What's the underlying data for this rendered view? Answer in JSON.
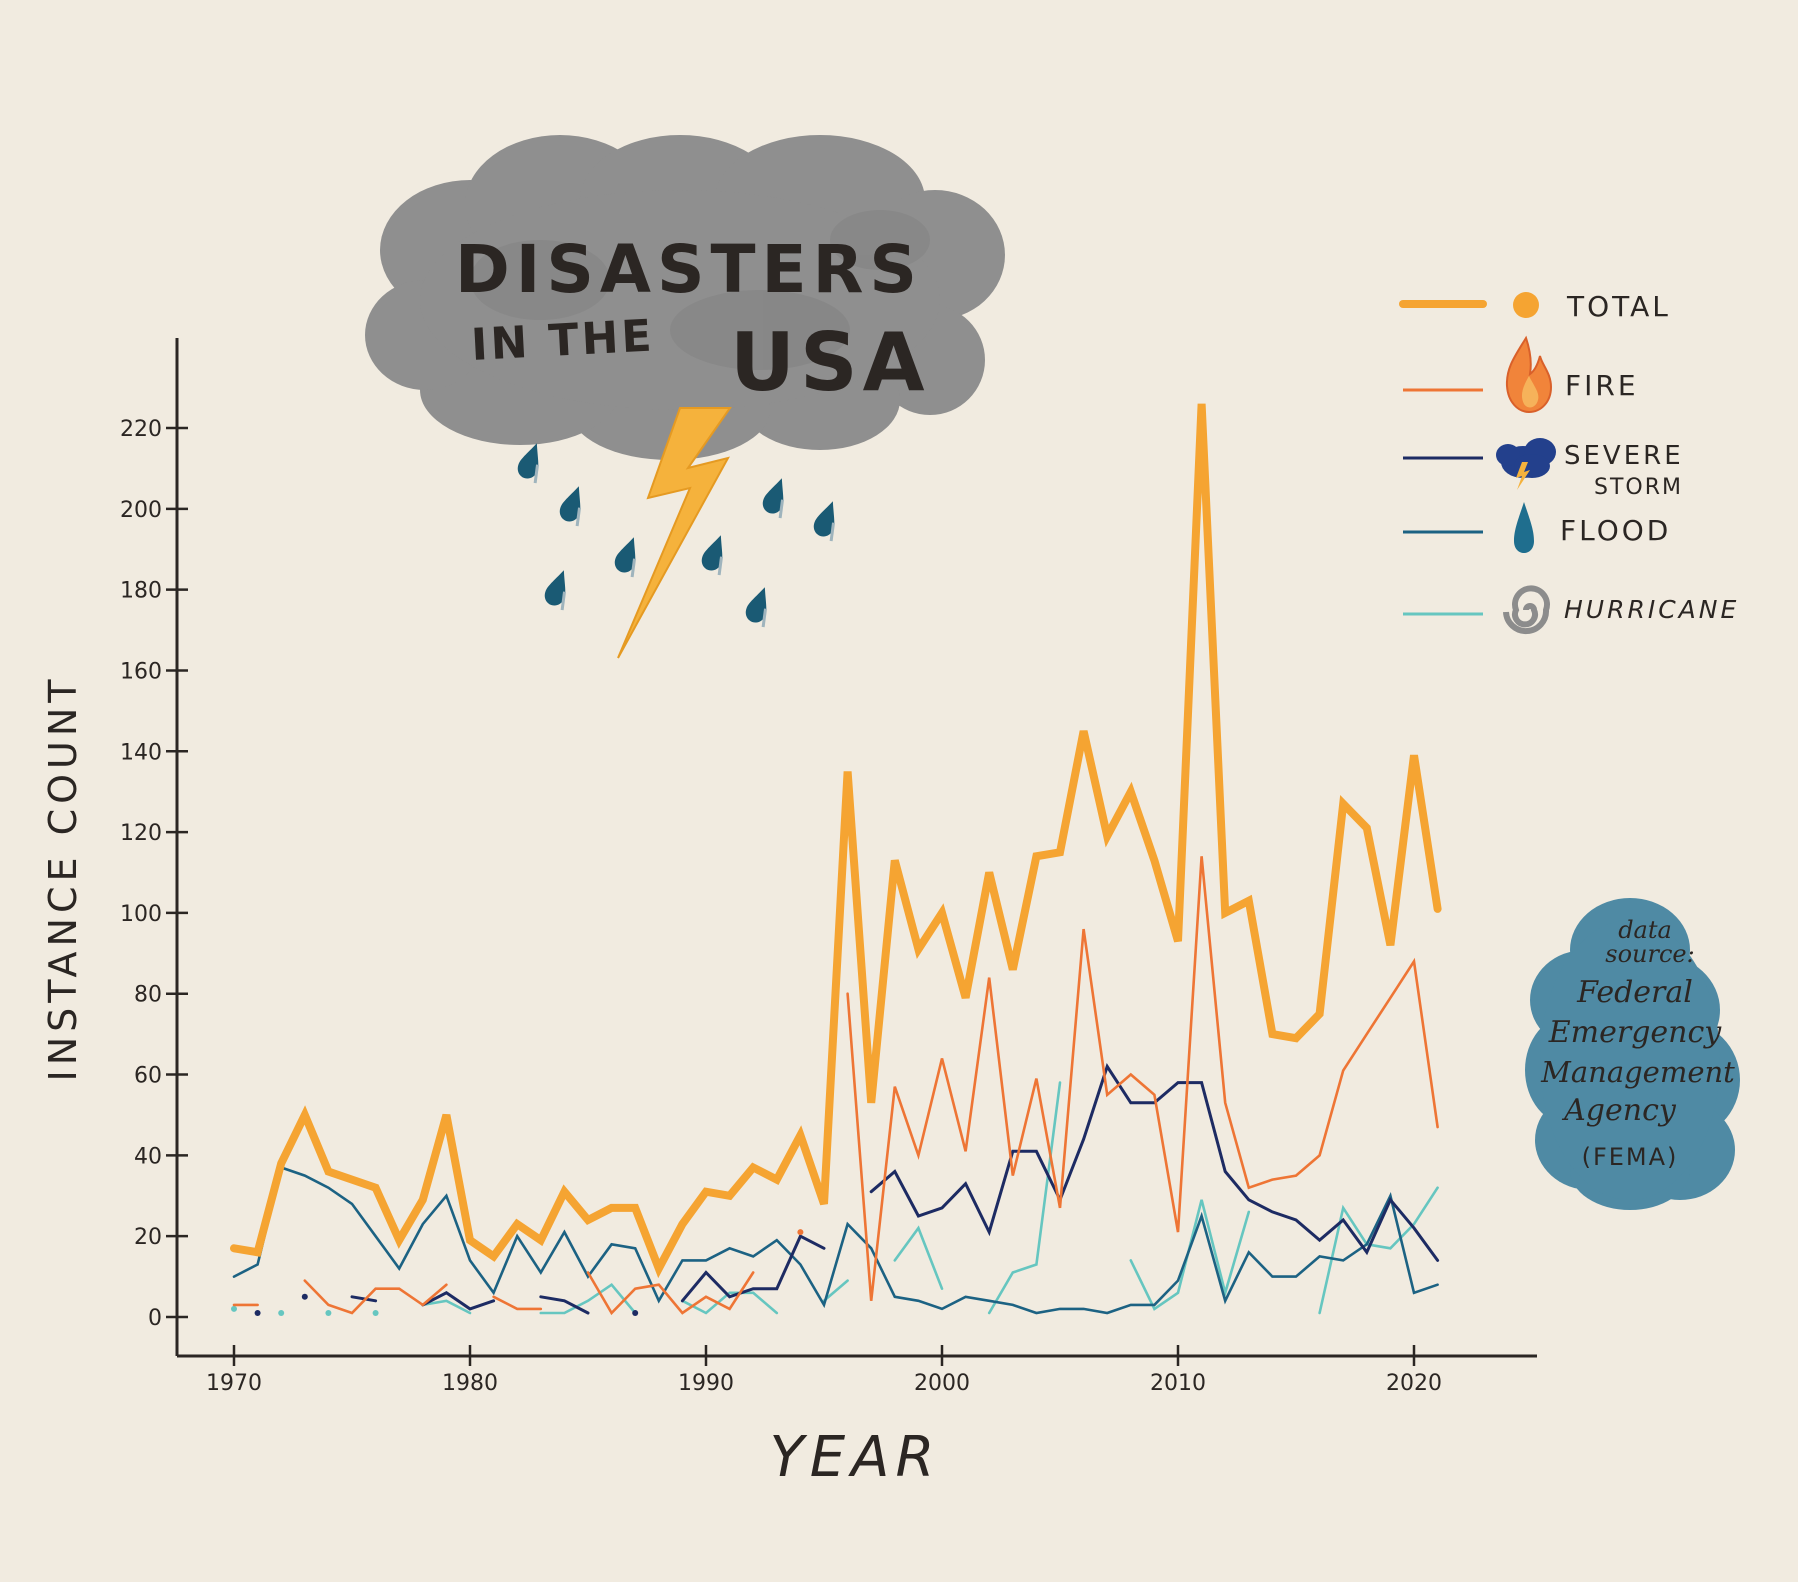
{
  "chart_data": {
    "type": "line",
    "title_line1": "DISASTERS",
    "title_line2_prefix": "IN THE",
    "title_line2_main": "USA",
    "xlabel": "YEAR",
    "ylabel": "INSTANCE COUNT",
    "xlim": [
      1968,
      2025
    ],
    "ylim": [
      -10,
      240
    ],
    "xticks": [
      1970,
      1980,
      1990,
      2000,
      2010,
      2020
    ],
    "yticks": [
      0,
      20,
      40,
      60,
      80,
      100,
      120,
      140,
      160,
      180,
      200,
      220
    ],
    "legend_position": "top-right",
    "source_note": [
      "data",
      "source:",
      "Federal",
      "Emergency",
      "Management",
      "Agency",
      "(FEMA)"
    ],
    "series": [
      {
        "name": "TOTAL",
        "color": "#f5a432",
        "icon": "dot-icon",
        "points": [
          [
            1970,
            17
          ],
          [
            1971,
            16
          ],
          [
            1972,
            38
          ],
          [
            1973,
            50
          ],
          [
            1974,
            36
          ],
          [
            1975,
            34
          ],
          [
            1976,
            32
          ],
          [
            1977,
            19
          ],
          [
            1978,
            29
          ],
          [
            1979,
            50
          ],
          [
            1980,
            19
          ],
          [
            1981,
            15
          ],
          [
            1982,
            23
          ],
          [
            1983,
            19
          ],
          [
            1984,
            31
          ],
          [
            1985,
            24
          ],
          [
            1986,
            27
          ],
          [
            1987,
            27
          ],
          [
            1988,
            12
          ],
          [
            1989,
            23
          ],
          [
            1990,
            31
          ],
          [
            1991,
            30
          ],
          [
            1992,
            37
          ],
          [
            1993,
            34
          ],
          [
            1994,
            45
          ],
          [
            1995,
            28
          ],
          [
            1996,
            135
          ],
          [
            1997,
            53
          ],
          [
            1998,
            113
          ],
          [
            1999,
            91
          ],
          [
            2000,
            100
          ],
          [
            2001,
            79
          ],
          [
            2002,
            110
          ],
          [
            2003,
            86
          ],
          [
            2004,
            114
          ],
          [
            2005,
            115
          ],
          [
            2006,
            145
          ],
          [
            2007,
            119
          ],
          [
            2008,
            130
          ],
          [
            2009,
            113
          ],
          [
            2010,
            93
          ],
          [
            2011,
            226
          ],
          [
            2012,
            100
          ],
          [
            2013,
            103
          ],
          [
            2014,
            70
          ],
          [
            2015,
            69
          ],
          [
            2016,
            75
          ],
          [
            2017,
            127
          ],
          [
            2018,
            121
          ],
          [
            2019,
            92
          ],
          [
            2020,
            139
          ],
          [
            2021,
            101
          ]
        ]
      },
      {
        "name": "FIRE",
        "color": "#ee7535",
        "icon": "flame-icon",
        "points": [
          [
            1970,
            3
          ],
          [
            1971,
            3
          ],
          null,
          [
            1973,
            9
          ],
          [
            1974,
            3
          ],
          [
            1975,
            1
          ],
          [
            1976,
            7
          ],
          [
            1977,
            7
          ],
          [
            1978,
            3
          ],
          [
            1979,
            8
          ],
          null,
          [
            1981,
            5
          ],
          [
            1982,
            2
          ],
          [
            1983,
            2
          ],
          null,
          [
            1985,
            11
          ],
          [
            1986,
            1
          ],
          [
            1987,
            7
          ],
          [
            1988,
            8
          ],
          [
            1989,
            1
          ],
          [
            1990,
            5
          ],
          [
            1991,
            2
          ],
          [
            1992,
            11
          ],
          null,
          [
            1994,
            21
          ],
          null,
          [
            1996,
            80
          ],
          [
            1997,
            4
          ],
          [
            1998,
            57
          ],
          [
            1999,
            40
          ],
          [
            2000,
            64
          ],
          [
            2001,
            41
          ],
          [
            2002,
            84
          ],
          [
            2003,
            35
          ],
          [
            2004,
            59
          ],
          [
            2005,
            27
          ],
          [
            2006,
            96
          ],
          [
            2007,
            55
          ],
          [
            2008,
            60
          ],
          [
            2009,
            55
          ],
          [
            2010,
            21
          ],
          [
            2011,
            114
          ],
          [
            2012,
            53
          ],
          [
            2013,
            32
          ],
          [
            2014,
            34
          ],
          [
            2015,
            35
          ],
          [
            2016,
            40
          ],
          [
            2017,
            61
          ],
          [
            2018,
            70
          ],
          [
            2019,
            79
          ],
          [
            2020,
            88
          ],
          [
            2021,
            47
          ]
        ]
      },
      {
        "name": "SEVERE STORM",
        "color": "#1d2b63",
        "icon": "storm-cloud-icon",
        "points": [
          [
            1971,
            1
          ],
          null,
          [
            1973,
            5
          ],
          null,
          [
            1975,
            5
          ],
          [
            1976,
            4
          ],
          null,
          [
            1978,
            3
          ],
          [
            1979,
            6
          ],
          [
            1980,
            2
          ],
          [
            1981,
            4
          ],
          null,
          [
            1983,
            5
          ],
          [
            1984,
            4
          ],
          [
            1985,
            1
          ],
          null,
          [
            1987,
            1
          ],
          null,
          [
            1989,
            4
          ],
          [
            1990,
            11
          ],
          [
            1991,
            5
          ],
          [
            1992,
            7
          ],
          [
            1993,
            7
          ],
          [
            1994,
            20
          ],
          [
            1995,
            17
          ],
          null,
          [
            1997,
            31
          ],
          [
            1998,
            36
          ],
          [
            1999,
            25
          ],
          [
            2000,
            27
          ],
          [
            2001,
            33
          ],
          [
            2002,
            21
          ],
          [
            2003,
            41
          ],
          [
            2004,
            41
          ],
          [
            2005,
            29
          ],
          [
            2006,
            44
          ],
          [
            2007,
            62
          ],
          [
            2008,
            53
          ],
          [
            2009,
            53
          ],
          [
            2010,
            58
          ],
          [
            2011,
            58
          ],
          [
            2012,
            36
          ],
          [
            2013,
            29
          ],
          [
            2014,
            26
          ],
          [
            2015,
            24
          ],
          [
            2016,
            19
          ],
          [
            2017,
            24
          ],
          [
            2018,
            16
          ],
          [
            2019,
            29
          ],
          [
            2020,
            22
          ],
          [
            2021,
            14
          ]
        ]
      },
      {
        "name": "FLOOD",
        "color": "#1c6283",
        "icon": "water-drop-icon",
        "points": [
          [
            1970,
            10
          ],
          [
            1971,
            13
          ],
          [
            1972,
            37
          ],
          [
            1973,
            35
          ],
          [
            1974,
            32
          ],
          [
            1975,
            28
          ],
          [
            1976,
            20
          ],
          [
            1977,
            12
          ],
          [
            1978,
            23
          ],
          [
            1979,
            30
          ],
          [
            1980,
            14
          ],
          [
            1981,
            6
          ],
          [
            1982,
            20
          ],
          [
            1983,
            11
          ],
          [
            1984,
            21
          ],
          [
            1985,
            10
          ],
          [
            1986,
            18
          ],
          [
            1987,
            17
          ],
          [
            1988,
            4
          ],
          [
            1989,
            14
          ],
          [
            1990,
            14
          ],
          [
            1991,
            17
          ],
          [
            1992,
            15
          ],
          [
            1993,
            19
          ],
          [
            1994,
            13
          ],
          [
            1995,
            3
          ],
          [
            1996,
            23
          ],
          [
            1997,
            17
          ],
          [
            1998,
            5
          ],
          [
            1999,
            4
          ],
          [
            2000,
            2
          ],
          [
            2001,
            5
          ],
          [
            2002,
            4
          ],
          [
            2003,
            3
          ],
          [
            2004,
            1
          ],
          [
            2005,
            2
          ],
          [
            2006,
            2
          ],
          [
            2007,
            1
          ],
          [
            2008,
            3
          ],
          [
            2009,
            3
          ],
          [
            2010,
            9
          ],
          [
            2011,
            25
          ],
          [
            2012,
            4
          ],
          [
            2013,
            16
          ],
          [
            2014,
            10
          ],
          [
            2015,
            10
          ],
          [
            2016,
            15
          ],
          [
            2017,
            14
          ],
          [
            2018,
            18
          ],
          [
            2019,
            30
          ],
          [
            2020,
            6
          ],
          [
            2021,
            8
          ]
        ]
      },
      {
        "name": "HURRICANE",
        "color": "#66c6c0",
        "icon": "spiral-icon",
        "points": [
          [
            1970,
            2
          ],
          null,
          [
            1972,
            1
          ],
          null,
          [
            1974,
            1
          ],
          null,
          [
            1976,
            1
          ],
          null,
          [
            1978,
            3
          ],
          [
            1979,
            4
          ],
          [
            1980,
            1
          ],
          null,
          [
            1983,
            1
          ],
          [
            1984,
            1
          ],
          [
            1985,
            4
          ],
          [
            1986,
            8
          ],
          [
            1987,
            1
          ],
          null,
          [
            1989,
            4
          ],
          [
            1990,
            1
          ],
          [
            1991,
            6
          ],
          [
            1992,
            6
          ],
          [
            1993,
            1
          ],
          null,
          [
            1995,
            4
          ],
          [
            1996,
            9
          ],
          null,
          [
            1998,
            14
          ],
          [
            1999,
            22
          ],
          [
            2000,
            7
          ],
          null,
          [
            2002,
            1
          ],
          [
            2003,
            11
          ],
          [
            2004,
            13
          ],
          [
            2005,
            58
          ],
          null,
          [
            2008,
            14
          ],
          [
            2009,
            2
          ],
          [
            2010,
            6
          ],
          [
            2011,
            29
          ],
          [
            2012,
            6
          ],
          [
            2013,
            26
          ],
          null,
          [
            2016,
            1
          ],
          [
            2017,
            27
          ],
          [
            2018,
            18
          ],
          [
            2019,
            17
          ],
          [
            2020,
            23
          ],
          [
            2021,
            32
          ]
        ]
      }
    ]
  },
  "legend": [
    {
      "label": "TOTAL",
      "icon": "dot-icon"
    },
    {
      "label": "FIRE",
      "icon": "flame-icon"
    },
    {
      "label": "SEVERE",
      "label2": "STORM",
      "icon": "storm-cloud-icon"
    },
    {
      "label": "FLOOD",
      "icon": "water-drop-icon"
    },
    {
      "label": "HURRICANE",
      "icon": "spiral-icon"
    }
  ],
  "colors": {
    "background": "#f1ebe0",
    "cloud": "#909090",
    "cloud_dark": "#7c7c7c",
    "bolt": "#f5b23c",
    "raindrop": "#1a5a74",
    "source_blob": "#4f8aa4",
    "ink": "#2b2623"
  }
}
